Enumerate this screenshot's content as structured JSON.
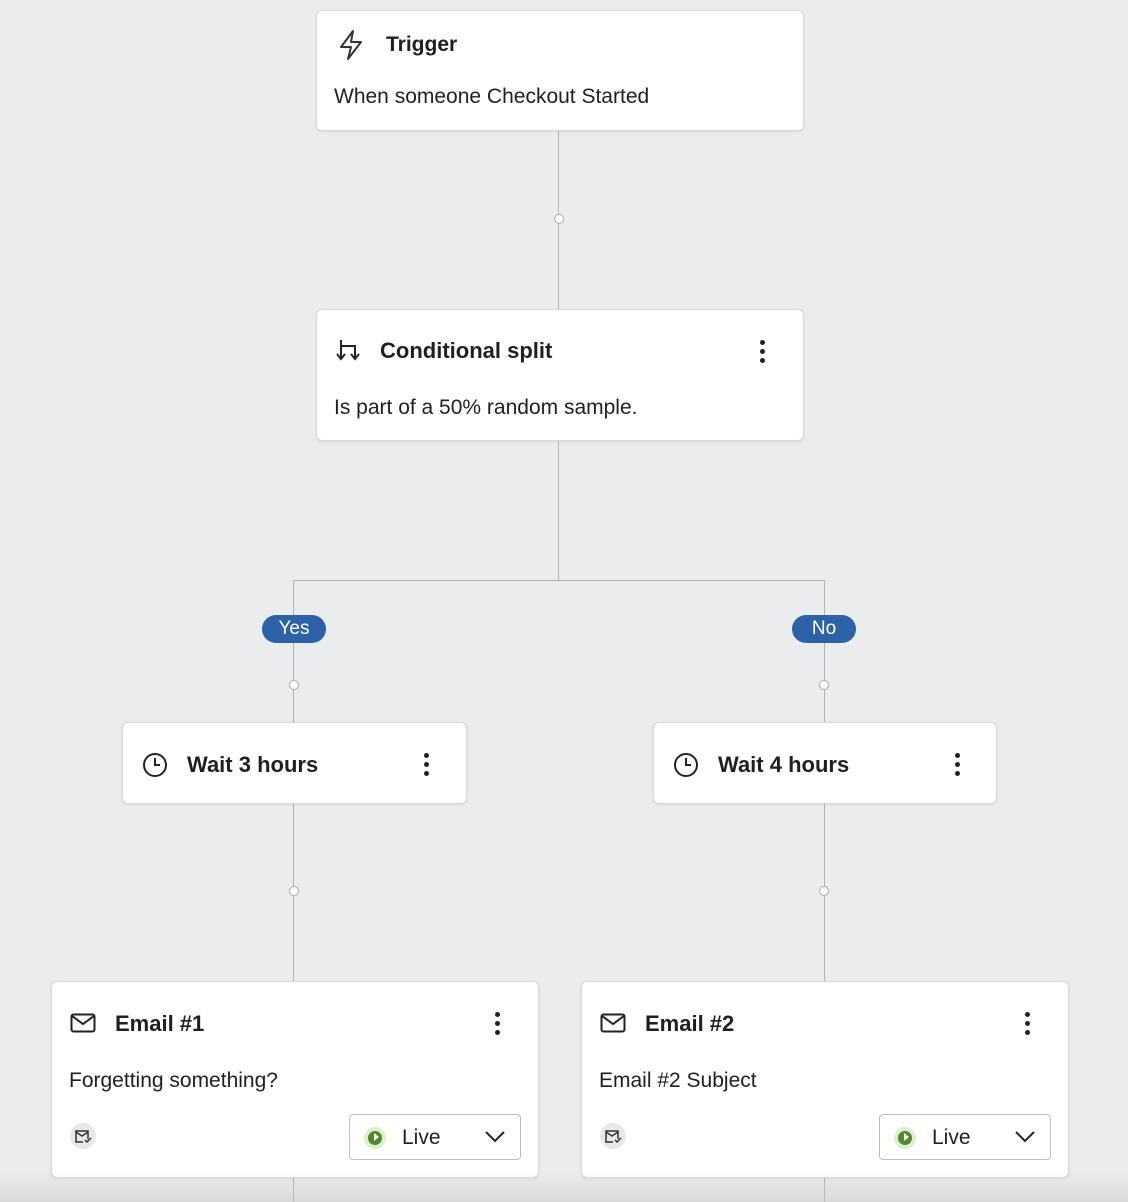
{
  "trigger": {
    "title": "Trigger",
    "description": "When someone Checkout Started",
    "icon": "lightning-icon"
  },
  "split": {
    "title": "Conditional split",
    "description": "Is part of a 50% random sample.",
    "icon": "split-icon"
  },
  "branches": {
    "yes": "Yes",
    "no": "No",
    "badge_color": "#2d62a6"
  },
  "waits": [
    {
      "title": "Wait 3 hours",
      "icon": "clock-icon"
    },
    {
      "title": "Wait 4 hours",
      "icon": "clock-icon"
    }
  ],
  "emails": [
    {
      "title": "Email #1",
      "subject": "Forgetting something?",
      "status": "Live"
    },
    {
      "title": "Email #2",
      "subject": "Email #2 Subject",
      "status": "Live"
    }
  ],
  "colors": {
    "background": "#ebecee",
    "live": "#4f8a2b"
  }
}
